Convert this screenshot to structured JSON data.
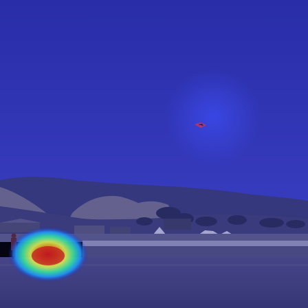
{
  "image": {
    "kind": "photo-with-attention-heatmap",
    "tint_color": "#2b30b0",
    "sky_color": "#2f37b8",
    "hill_color": "#3d3f7c",
    "field_color": "#45447a",
    "heatmap_colors": [
      "#0000ff",
      "#00c8ff",
      "#7dff7a",
      "#ffd400",
      "#ff2a00"
    ],
    "objects": [
      "kite",
      "hills",
      "buildings",
      "tents",
      "fence",
      "people",
      "grass-field"
    ]
  }
}
